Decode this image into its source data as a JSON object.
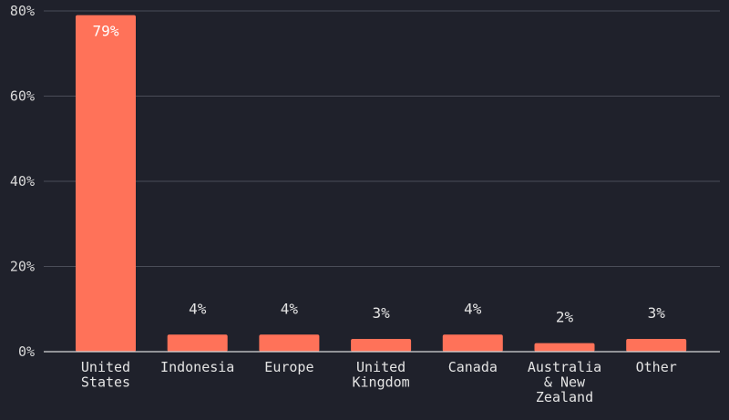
{
  "chart_data": {
    "type": "bar",
    "categories": [
      "United\nStates",
      "Indonesia",
      "Europe",
      "United\nKingdom",
      "Canada",
      "Australia\n& New\nZealand",
      "Other"
    ],
    "values": [
      79,
      4,
      4,
      3,
      4,
      2,
      3
    ],
    "value_labels": [
      "79%",
      "4%",
      "4%",
      "3%",
      "4%",
      "2%",
      "3%"
    ],
    "y_ticks": [
      "0%",
      "20%",
      "40%",
      "60%",
      "80%"
    ],
    "ylim": [
      0,
      80
    ],
    "grid": true,
    "legend": "none",
    "title": "",
    "xlabel": "",
    "ylabel": ""
  },
  "colors": {
    "background": "#1f212b",
    "bar": "#ff7259",
    "grid": "#4a4d58",
    "text": "#e4e4e4"
  }
}
